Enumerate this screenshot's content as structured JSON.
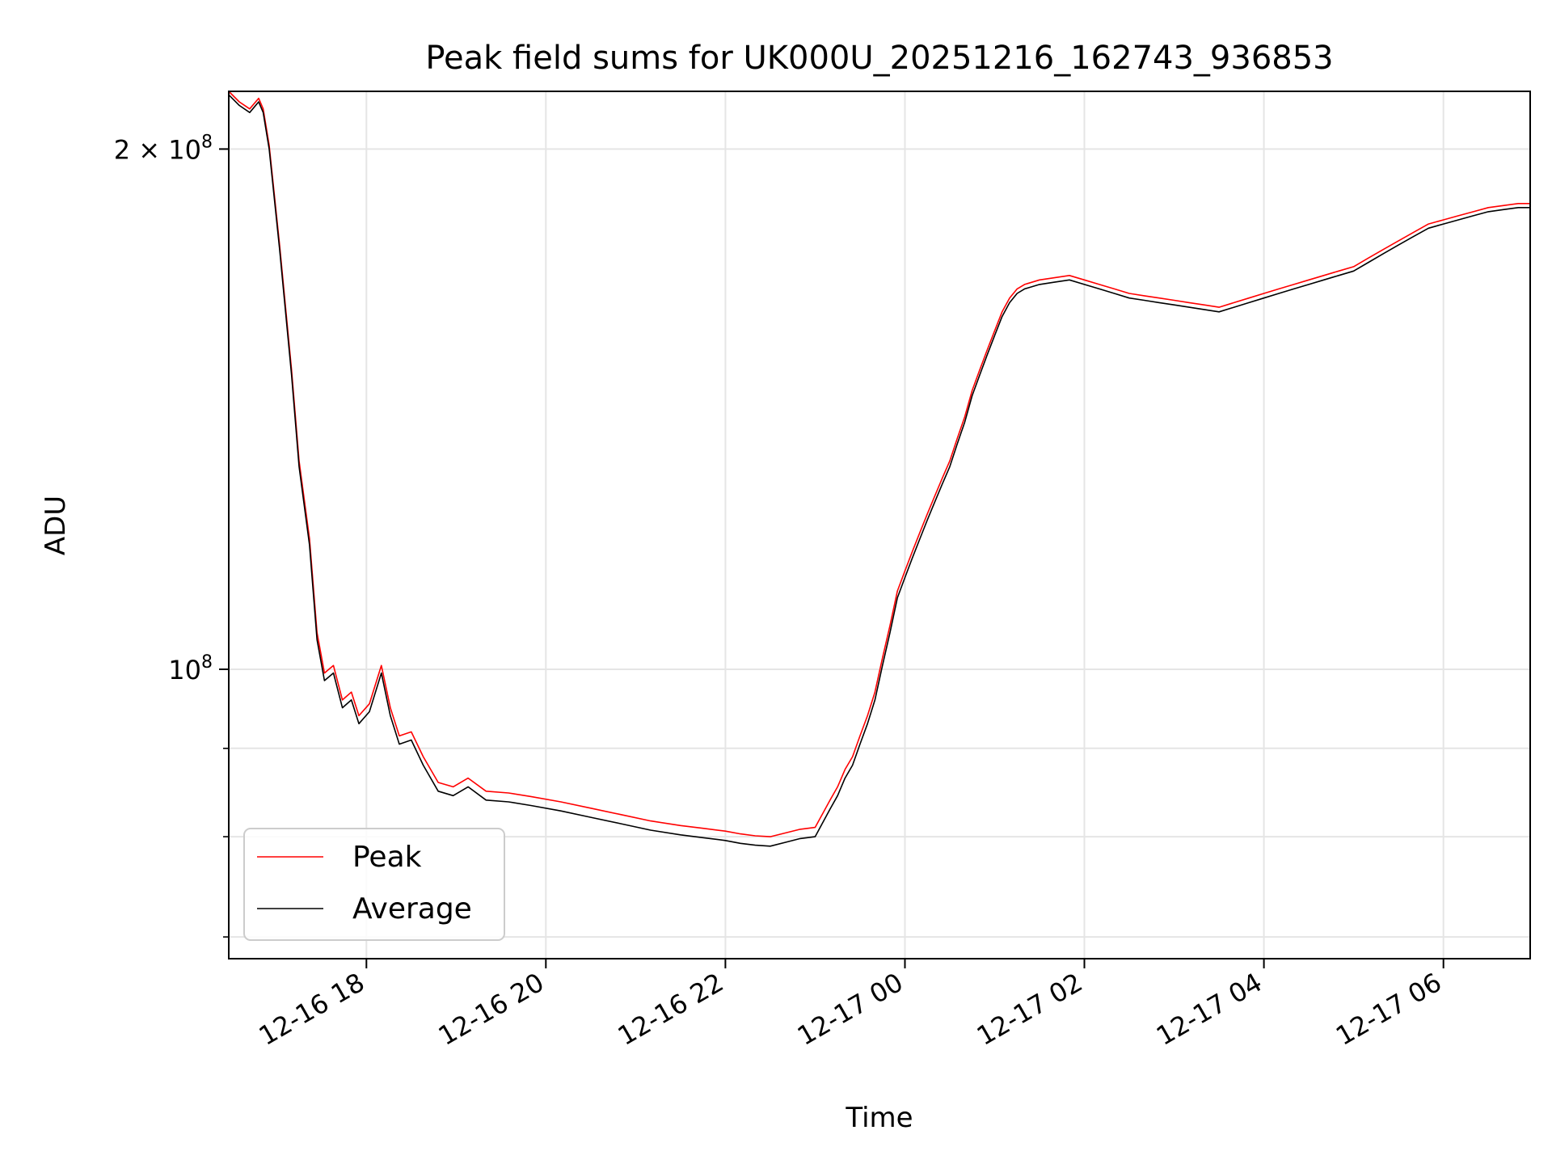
{
  "chart_data": {
    "type": "line",
    "title": "Peak field sums for UK000U_20251216_162743_936853",
    "xlabel": "Time",
    "ylabel": "ADU",
    "yscale": "log",
    "grid": true,
    "legend_placement": "lower-left",
    "xlim": [
      "2025-12-16 16:28",
      "2025-12-17 06:58"
    ],
    "ylim": [
      68000000,
      216000000
    ],
    "x_ticks": [
      {
        "value": "2025-12-16 18:00",
        "label": "12-16 18"
      },
      {
        "value": "2025-12-16 20:00",
        "label": "12-16 20"
      },
      {
        "value": "2025-12-16 22:00",
        "label": "12-16 22"
      },
      {
        "value": "2025-12-17 00:00",
        "label": "12-17 00"
      },
      {
        "value": "2025-12-17 02:00",
        "label": "12-17 02"
      },
      {
        "value": "2025-12-17 04:00",
        "label": "12-17 04"
      },
      {
        "value": "2025-12-17 06:00",
        "label": "12-17 06"
      }
    ],
    "y_ticks_major": [
      {
        "value": 100000000,
        "base": "10",
        "exp": "8",
        "coef": ""
      },
      {
        "value": 200000000,
        "base": "10",
        "exp": "8",
        "coef": "2 × "
      }
    ],
    "y_ticks_minor": [
      70000000,
      80000000,
      90000000
    ],
    "series": [
      {
        "name": "Average",
        "color": "#000000",
        "points": [
          [
            "2025-12-16 16:28",
            215000000
          ],
          [
            "2025-12-16 16:35",
            212000000
          ],
          [
            "2025-12-16 16:42",
            210000000
          ],
          [
            "2025-12-16 16:48",
            213000000
          ],
          [
            "2025-12-16 16:51",
            210000000
          ],
          [
            "2025-12-16 16:55",
            200000000
          ],
          [
            "2025-12-16 17:02",
            175000000
          ],
          [
            "2025-12-16 17:10",
            148000000
          ],
          [
            "2025-12-16 17:15",
            131000000
          ],
          [
            "2025-12-16 17:22",
            118000000
          ],
          [
            "2025-12-16 17:27",
            104000000
          ],
          [
            "2025-12-16 17:32",
            98500000
          ],
          [
            "2025-12-16 17:38",
            99500000
          ],
          [
            "2025-12-16 17:44",
            95000000
          ],
          [
            "2025-12-16 17:50",
            96000000
          ],
          [
            "2025-12-16 17:55",
            93000000
          ],
          [
            "2025-12-16 18:02",
            94500000
          ],
          [
            "2025-12-16 18:10",
            99500000
          ],
          [
            "2025-12-16 18:16",
            94000000
          ],
          [
            "2025-12-16 18:22",
            90500000
          ],
          [
            "2025-12-16 18:30",
            91000000
          ],
          [
            "2025-12-16 18:38",
            88000000
          ],
          [
            "2025-12-16 18:48",
            85000000
          ],
          [
            "2025-12-16 18:58",
            84500000
          ],
          [
            "2025-12-16 19:08",
            85500000
          ],
          [
            "2025-12-16 19:20",
            84000000
          ],
          [
            "2025-12-16 19:35",
            83800000
          ],
          [
            "2025-12-16 19:50",
            83400000
          ],
          [
            "2025-12-16 20:10",
            82800000
          ],
          [
            "2025-12-16 20:30",
            82100000
          ],
          [
            "2025-12-16 20:50",
            81400000
          ],
          [
            "2025-12-16 21:10",
            80700000
          ],
          [
            "2025-12-16 21:30",
            80200000
          ],
          [
            "2025-12-16 21:45",
            79900000
          ],
          [
            "2025-12-16 22:00",
            79600000
          ],
          [
            "2025-12-16 22:10",
            79300000
          ],
          [
            "2025-12-16 22:20",
            79100000
          ],
          [
            "2025-12-16 22:30",
            79000000
          ],
          [
            "2025-12-16 22:40",
            79400000
          ],
          [
            "2025-12-16 22:50",
            79800000
          ],
          [
            "2025-12-16 23:00",
            80000000
          ],
          [
            "2025-12-16 23:05",
            81500000
          ],
          [
            "2025-12-16 23:10",
            83000000
          ],
          [
            "2025-12-16 23:15",
            84500000
          ],
          [
            "2025-12-16 23:20",
            86500000
          ],
          [
            "2025-12-16 23:25",
            88000000
          ],
          [
            "2025-12-16 23:30",
            90500000
          ],
          [
            "2025-12-16 23:35",
            93000000
          ],
          [
            "2025-12-16 23:40",
            96000000
          ],
          [
            "2025-12-16 23:45",
            100500000
          ],
          [
            "2025-12-16 23:50",
            105000000
          ],
          [
            "2025-12-16 23:55",
            110000000
          ],
          [
            "2025-12-17 00:00",
            113000000
          ],
          [
            "2025-12-17 00:05",
            116000000
          ],
          [
            "2025-12-17 00:10",
            119000000
          ],
          [
            "2025-12-17 00:15",
            122000000
          ],
          [
            "2025-12-17 00:20",
            125000000
          ],
          [
            "2025-12-17 00:25",
            128000000
          ],
          [
            "2025-12-17 00:30",
            131000000
          ],
          [
            "2025-12-17 00:35",
            135000000
          ],
          [
            "2025-12-17 00:40",
            139000000
          ],
          [
            "2025-12-17 00:45",
            144000000
          ],
          [
            "2025-12-17 00:50",
            148000000
          ],
          [
            "2025-12-17 00:55",
            152000000
          ],
          [
            "2025-12-17 01:00",
            156000000
          ],
          [
            "2025-12-17 01:05",
            160000000
          ],
          [
            "2025-12-17 01:10",
            163000000
          ],
          [
            "2025-12-17 01:15",
            165000000
          ],
          [
            "2025-12-17 01:20",
            166000000
          ],
          [
            "2025-12-17 01:30",
            167000000
          ],
          [
            "2025-12-17 01:40",
            167500000
          ],
          [
            "2025-12-17 01:50",
            168000000
          ],
          [
            "2025-12-17 02:00",
            167000000
          ],
          [
            "2025-12-17 02:10",
            166000000
          ],
          [
            "2025-12-17 02:20",
            165000000
          ],
          [
            "2025-12-17 02:30",
            164000000
          ],
          [
            "2025-12-17 02:40",
            163500000
          ],
          [
            "2025-12-17 02:50",
            163000000
          ],
          [
            "2025-12-17 03:00",
            162500000
          ],
          [
            "2025-12-17 03:10",
            162000000
          ],
          [
            "2025-12-17 03:20",
            161500000
          ],
          [
            "2025-12-17 03:30",
            161000000
          ],
          [
            "2025-12-17 03:40",
            162000000
          ],
          [
            "2025-12-17 03:50",
            163000000
          ],
          [
            "2025-12-17 04:00",
            164000000
          ],
          [
            "2025-12-17 04:10",
            165000000
          ],
          [
            "2025-12-17 04:20",
            166000000
          ],
          [
            "2025-12-17 04:30",
            167000000
          ],
          [
            "2025-12-17 04:40",
            168000000
          ],
          [
            "2025-12-17 04:50",
            169000000
          ],
          [
            "2025-12-17 05:00",
            170000000
          ],
          [
            "2025-12-17 05:10",
            172000000
          ],
          [
            "2025-12-17 05:20",
            174000000
          ],
          [
            "2025-12-17 05:30",
            176000000
          ],
          [
            "2025-12-17 05:40",
            178000000
          ],
          [
            "2025-12-17 05:50",
            180000000
          ],
          [
            "2025-12-17 06:00",
            181000000
          ],
          [
            "2025-12-17 06:10",
            182000000
          ],
          [
            "2025-12-17 06:20",
            183000000
          ],
          [
            "2025-12-17 06:30",
            184000000
          ],
          [
            "2025-12-17 06:40",
            184500000
          ],
          [
            "2025-12-17 06:50",
            185000000
          ],
          [
            "2025-12-17 06:58",
            185000000
          ]
        ]
      },
      {
        "name": "Peak",
        "color": "#ff0000",
        "points": [
          [
            "2025-12-16 16:28",
            216000000
          ],
          [
            "2025-12-16 16:35",
            213000000
          ],
          [
            "2025-12-16 16:42",
            211000000
          ],
          [
            "2025-12-16 16:48",
            214000000
          ],
          [
            "2025-12-16 16:51",
            211000000
          ],
          [
            "2025-12-16 16:55",
            201000000
          ],
          [
            "2025-12-16 17:02",
            176000000
          ],
          [
            "2025-12-16 17:10",
            149000000
          ],
          [
            "2025-12-16 17:15",
            132000000
          ],
          [
            "2025-12-16 17:22",
            119000000
          ],
          [
            "2025-12-16 17:27",
            105000000
          ],
          [
            "2025-12-16 17:32",
            99500000
          ],
          [
            "2025-12-16 17:38",
            100500000
          ],
          [
            "2025-12-16 17:44",
            96000000
          ],
          [
            "2025-12-16 17:50",
            97000000
          ],
          [
            "2025-12-16 17:55",
            94000000
          ],
          [
            "2025-12-16 18:02",
            95500000
          ],
          [
            "2025-12-16 18:10",
            100500000
          ],
          [
            "2025-12-16 18:16",
            95000000
          ],
          [
            "2025-12-16 18:22",
            91500000
          ],
          [
            "2025-12-16 18:30",
            92000000
          ],
          [
            "2025-12-16 18:38",
            89000000
          ],
          [
            "2025-12-16 18:48",
            86000000
          ],
          [
            "2025-12-16 18:58",
            85500000
          ],
          [
            "2025-12-16 19:08",
            86500000
          ],
          [
            "2025-12-16 19:20",
            85000000
          ],
          [
            "2025-12-16 19:35",
            84800000
          ],
          [
            "2025-12-16 19:50",
            84400000
          ],
          [
            "2025-12-16 20:10",
            83800000
          ],
          [
            "2025-12-16 20:30",
            83100000
          ],
          [
            "2025-12-16 20:50",
            82400000
          ],
          [
            "2025-12-16 21:10",
            81700000
          ],
          [
            "2025-12-16 21:30",
            81200000
          ],
          [
            "2025-12-16 21:45",
            80900000
          ],
          [
            "2025-12-16 22:00",
            80600000
          ],
          [
            "2025-12-16 22:10",
            80300000
          ],
          [
            "2025-12-16 22:20",
            80100000
          ],
          [
            "2025-12-16 22:30",
            80000000
          ],
          [
            "2025-12-16 22:40",
            80400000
          ],
          [
            "2025-12-16 22:50",
            80800000
          ],
          [
            "2025-12-16 23:00",
            81000000
          ],
          [
            "2025-12-16 23:05",
            82500000
          ],
          [
            "2025-12-16 23:10",
            84000000
          ],
          [
            "2025-12-16 23:15",
            85500000
          ],
          [
            "2025-12-16 23:20",
            87500000
          ],
          [
            "2025-12-16 23:25",
            89000000
          ],
          [
            "2025-12-16 23:30",
            91500000
          ],
          [
            "2025-12-16 23:35",
            94000000
          ],
          [
            "2025-12-16 23:40",
            97000000
          ],
          [
            "2025-12-16 23:45",
            101500000
          ],
          [
            "2025-12-16 23:50",
            106000000
          ],
          [
            "2025-12-16 23:55",
            111000000
          ],
          [
            "2025-12-17 00:00",
            114000000
          ],
          [
            "2025-12-17 00:05",
            117000000
          ],
          [
            "2025-12-17 00:10",
            120000000
          ],
          [
            "2025-12-17 00:15",
            123000000
          ],
          [
            "2025-12-17 00:20",
            126000000
          ],
          [
            "2025-12-17 00:25",
            129000000
          ],
          [
            "2025-12-17 00:30",
            132000000
          ],
          [
            "2025-12-17 00:35",
            136000000
          ],
          [
            "2025-12-17 00:40",
            140000000
          ],
          [
            "2025-12-17 00:45",
            145000000
          ],
          [
            "2025-12-17 00:50",
            149000000
          ],
          [
            "2025-12-17 00:55",
            153000000
          ],
          [
            "2025-12-17 01:00",
            157000000
          ],
          [
            "2025-12-17 01:05",
            161000000
          ],
          [
            "2025-12-17 01:10",
            164000000
          ],
          [
            "2025-12-17 01:15",
            166000000
          ],
          [
            "2025-12-17 01:20",
            167000000
          ],
          [
            "2025-12-17 01:30",
            168000000
          ],
          [
            "2025-12-17 01:40",
            168500000
          ],
          [
            "2025-12-17 01:50",
            169000000
          ],
          [
            "2025-12-17 02:00",
            168000000
          ],
          [
            "2025-12-17 02:10",
            167000000
          ],
          [
            "2025-12-17 02:20",
            166000000
          ],
          [
            "2025-12-17 02:30",
            165000000
          ],
          [
            "2025-12-17 02:40",
            164500000
          ],
          [
            "2025-12-17 02:50",
            164000000
          ],
          [
            "2025-12-17 03:00",
            163500000
          ],
          [
            "2025-12-17 03:10",
            163000000
          ],
          [
            "2025-12-17 03:20",
            162500000
          ],
          [
            "2025-12-17 03:30",
            162000000
          ],
          [
            "2025-12-17 03:40",
            163000000
          ],
          [
            "2025-12-17 03:50",
            164000000
          ],
          [
            "2025-12-17 04:00",
            165000000
          ],
          [
            "2025-12-17 04:10",
            166000000
          ],
          [
            "2025-12-17 04:20",
            167000000
          ],
          [
            "2025-12-17 04:30",
            168000000
          ],
          [
            "2025-12-17 04:40",
            169000000
          ],
          [
            "2025-12-17 04:50",
            170000000
          ],
          [
            "2025-12-17 05:00",
            171000000
          ],
          [
            "2025-12-17 05:10",
            173000000
          ],
          [
            "2025-12-17 05:20",
            175000000
          ],
          [
            "2025-12-17 05:30",
            177000000
          ],
          [
            "2025-12-17 05:40",
            179000000
          ],
          [
            "2025-12-17 05:50",
            181000000
          ],
          [
            "2025-12-17 06:00",
            182000000
          ],
          [
            "2025-12-17 06:10",
            183000000
          ],
          [
            "2025-12-17 06:20",
            184000000
          ],
          [
            "2025-12-17 06:30",
            185000000
          ],
          [
            "2025-12-17 06:40",
            185500000
          ],
          [
            "2025-12-17 06:50",
            186000000
          ],
          [
            "2025-12-17 06:58",
            186000000
          ]
        ]
      }
    ]
  }
}
